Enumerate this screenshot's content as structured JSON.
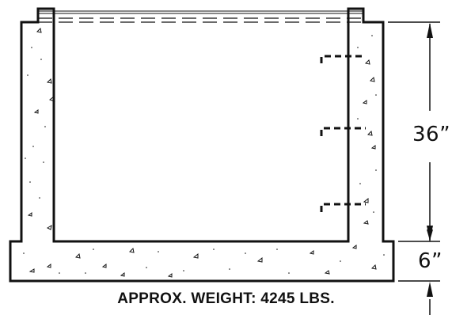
{
  "diagram": {
    "dimensions": {
      "wall_height": "36”",
      "base_thickness": "6”"
    },
    "caption": "APPROX. WEIGHT: 4245 LBS."
  }
}
